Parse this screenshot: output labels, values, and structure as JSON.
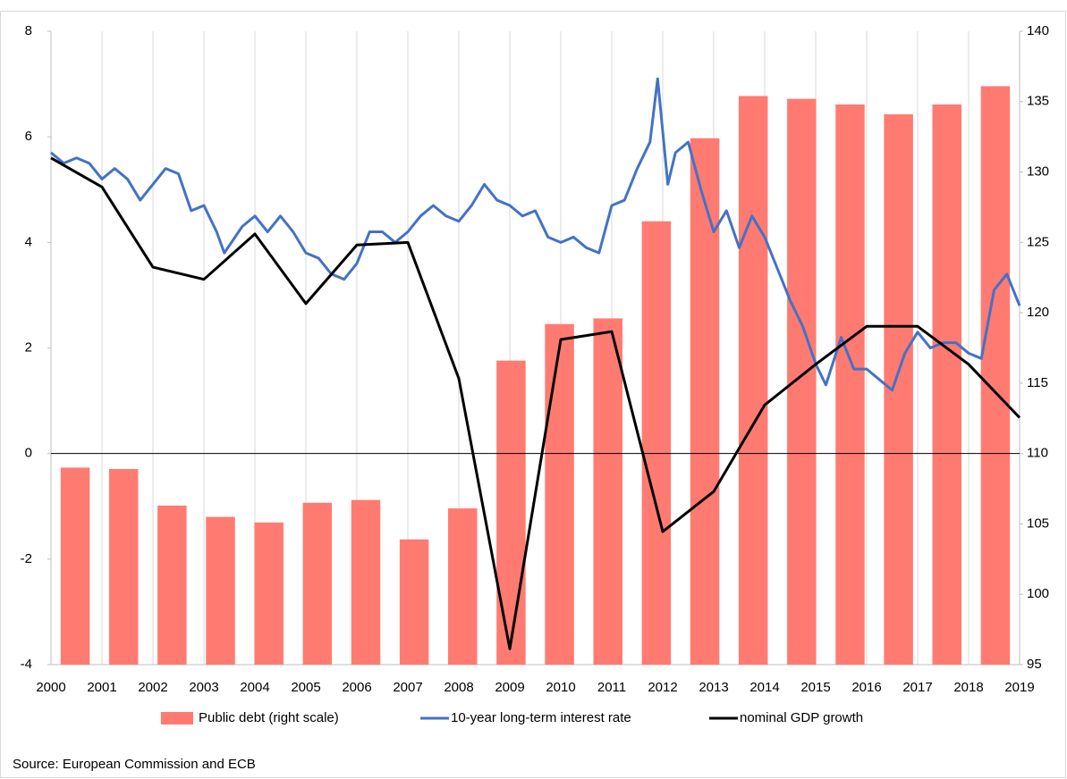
{
  "chart_data": {
    "type": "combo",
    "xlim": [
      2000,
      2019
    ],
    "xticks": [
      2000,
      2001,
      2002,
      2003,
      2004,
      2005,
      2006,
      2007,
      2008,
      2009,
      2010,
      2011,
      2012,
      2013,
      2014,
      2015,
      2016,
      2017,
      2018,
      2019
    ],
    "ylim": [
      -4,
      8
    ],
    "yticks": [
      -4,
      -2,
      0,
      2,
      4,
      6,
      8
    ],
    "y2lim": [
      95,
      140
    ],
    "y2ticks": [
      95,
      100,
      105,
      110,
      115,
      120,
      125,
      130,
      135,
      140
    ],
    "grid": "x",
    "legend": "bottom",
    "series": [
      {
        "name": "Public debt (right scale)",
        "type": "bar",
        "axis": "y2",
        "color": "#ff7b72",
        "values": [
          109.0,
          108.9,
          106.3,
          105.5,
          105.1,
          106.5,
          106.7,
          103.9,
          106.1,
          116.6,
          119.2,
          119.6,
          126.5,
          132.4,
          135.4,
          135.2,
          134.8,
          134.1,
          134.8,
          136.1
        ]
      },
      {
        "name": "10-year long-term interest rate",
        "type": "line",
        "color": "#4472c4",
        "x": [
          2000.0,
          2000.25,
          2000.5,
          2000.75,
          2001.0,
          2001.25,
          2001.5,
          2001.75,
          2002.0,
          2002.25,
          2002.5,
          2002.75,
          2003.0,
          2003.25,
          2003.4,
          2003.75,
          2004.0,
          2004.25,
          2004.5,
          2004.75,
          2005.0,
          2005.25,
          2005.5,
          2005.75,
          2006.0,
          2006.25,
          2006.5,
          2006.75,
          2007.0,
          2007.25,
          2007.5,
          2007.75,
          2008.0,
          2008.25,
          2008.5,
          2008.75,
          2009.0,
          2009.25,
          2009.5,
          2009.75,
          2010.0,
          2010.25,
          2010.5,
          2010.75,
          2011.0,
          2011.25,
          2011.5,
          2011.75,
          2011.9,
          2012.1,
          2012.25,
          2012.5,
          2012.75,
          2013.0,
          2013.25,
          2013.5,
          2013.75,
          2014.0,
          2014.25,
          2014.5,
          2014.75,
          2015.0,
          2015.2,
          2015.5,
          2015.75,
          2016.0,
          2016.25,
          2016.5,
          2016.75,
          2017.0,
          2017.25,
          2017.5,
          2017.75,
          2018.0,
          2018.25,
          2018.5,
          2018.75,
          2019.0
        ],
        "values": [
          5.7,
          5.5,
          5.6,
          5.5,
          5.2,
          5.4,
          5.2,
          4.8,
          5.1,
          5.4,
          5.3,
          4.6,
          4.7,
          4.2,
          3.8,
          4.3,
          4.5,
          4.2,
          4.5,
          4.2,
          3.8,
          3.7,
          3.4,
          3.3,
          3.6,
          4.2,
          4.2,
          4.0,
          4.2,
          4.5,
          4.7,
          4.5,
          4.4,
          4.7,
          5.1,
          4.8,
          4.7,
          4.5,
          4.6,
          4.1,
          4.0,
          4.1,
          3.9,
          3.8,
          4.7,
          4.8,
          5.4,
          5.9,
          7.1,
          5.1,
          5.7,
          5.9,
          5.0,
          4.2,
          4.6,
          3.9,
          4.5,
          4.1,
          3.5,
          2.9,
          2.4,
          1.7,
          1.3,
          2.2,
          1.6,
          1.6,
          1.4,
          1.2,
          1.9,
          2.3,
          2.0,
          2.1,
          2.1,
          1.9,
          1.8,
          3.1,
          3.4,
          2.8
        ]
      },
      {
        "name": "nominal GDP growth",
        "type": "line",
        "color": "#000000",
        "x": [
          2000,
          2001,
          2002,
          2003,
          2004,
          2005,
          2006,
          2007,
          2008,
          2009,
          2010,
          2011,
          2012,
          2013,
          2014,
          2015,
          2016,
          2017,
          2018,
          2019
        ],
        "values": [
          5.6,
          5.05,
          3.53,
          3.3,
          4.16,
          2.84,
          3.95,
          4.0,
          1.42,
          -3.7,
          2.16,
          2.31,
          -1.48,
          -0.72,
          0.92,
          1.69,
          2.41,
          2.41,
          1.69,
          0.68
        ]
      }
    ],
    "source": "Source: European Commission and ECB"
  }
}
